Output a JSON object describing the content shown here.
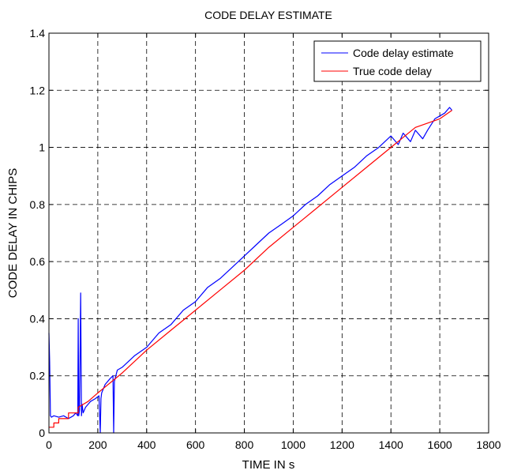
{
  "chart_data": {
    "type": "line",
    "title": "CODE DELAY ESTIMATE",
    "xlabel": "TIME IN s",
    "ylabel": "CODE DELAY IN CHIPS",
    "xlim": [
      0,
      1800
    ],
    "ylim": [
      0,
      1.4
    ],
    "xticks": [
      0,
      200,
      400,
      600,
      800,
      1000,
      1200,
      1400,
      1600,
      1800
    ],
    "yticks": [
      0,
      0.2,
      0.4,
      0.6,
      0.8,
      1,
      1.2,
      1.4
    ],
    "grid": true,
    "legend_position": "top-right",
    "series": [
      {
        "name": "Code delay estimate",
        "color": "#0000ff",
        "x": [
          0,
          3,
          6,
          10,
          20,
          40,
          60,
          80,
          100,
          110,
          118,
          120,
          122,
          125,
          130,
          133,
          136,
          140,
          150,
          170,
          190,
          205,
          210,
          213,
          216,
          230,
          250,
          262,
          265,
          268,
          280,
          300,
          350,
          400,
          450,
          500,
          550,
          600,
          650,
          700,
          750,
          800,
          850,
          900,
          950,
          1000,
          1050,
          1100,
          1150,
          1200,
          1250,
          1300,
          1350,
          1400,
          1430,
          1450,
          1480,
          1500,
          1530,
          1550,
          1580,
          1600,
          1620,
          1640,
          1650
        ],
        "y": [
          0.35,
          0.25,
          0.06,
          0.055,
          0.06,
          0.055,
          0.06,
          0.05,
          0.06,
          0.07,
          0.06,
          0.4,
          0.06,
          0.08,
          0.49,
          0.06,
          0.1,
          0.07,
          0.09,
          0.11,
          0.12,
          0.13,
          0.0,
          0.12,
          0.14,
          0.17,
          0.19,
          0.2,
          0.0,
          0.18,
          0.22,
          0.23,
          0.27,
          0.3,
          0.35,
          0.38,
          0.43,
          0.46,
          0.51,
          0.54,
          0.58,
          0.62,
          0.66,
          0.7,
          0.73,
          0.76,
          0.8,
          0.83,
          0.87,
          0.9,
          0.93,
          0.97,
          1.0,
          1.04,
          1.01,
          1.05,
          1.02,
          1.06,
          1.03,
          1.06,
          1.1,
          1.11,
          1.12,
          1.14,
          1.13
        ]
      },
      {
        "name": "True code delay",
        "color": "#ff0000",
        "x": [
          0,
          20,
          20,
          40,
          40,
          80,
          80,
          120,
          120,
          160,
          200,
          300,
          400,
          500,
          600,
          700,
          800,
          900,
          1000,
          1100,
          1200,
          1300,
          1400,
          1500,
          1600,
          1650
        ],
        "y": [
          0.02,
          0.02,
          0.035,
          0.035,
          0.05,
          0.05,
          0.07,
          0.07,
          0.09,
          0.11,
          0.14,
          0.21,
          0.29,
          0.36,
          0.43,
          0.5,
          0.57,
          0.65,
          0.72,
          0.79,
          0.86,
          0.93,
          1.0,
          1.07,
          1.1,
          1.13
        ]
      }
    ]
  }
}
